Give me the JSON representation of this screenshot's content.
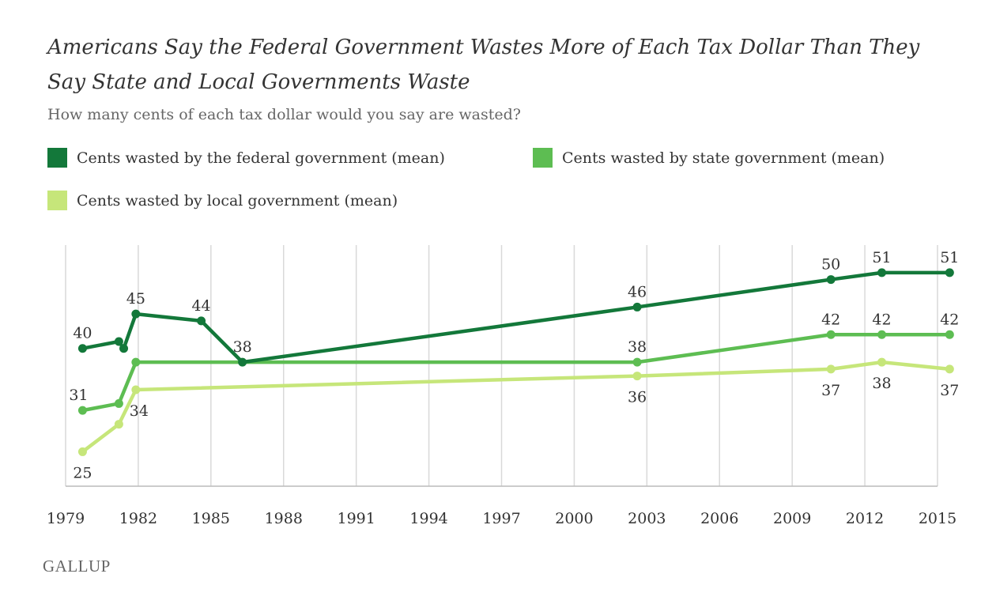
{
  "title": "Americans Say the Federal Government Wastes More of Each Tax Dollar Than They Say State and Local Governments Waste",
  "subtitle": "How many cents of each tax dollar would you say are wasted?",
  "brand": "GALLUP",
  "chart_data": {
    "type": "line",
    "x_ticks": [
      "1979",
      "1982",
      "1985",
      "1988",
      "1991",
      "1994",
      "1997",
      "2000",
      "2003",
      "2006",
      "2009",
      "2012",
      "2015"
    ],
    "xlim": [
      1979,
      2015
    ],
    "ylim": [
      20,
      55
    ],
    "grid": "vertical",
    "legend_position": "top",
    "series": [
      {
        "name": "Cents wasted by the federal government (mean)",
        "color": "#13783a",
        "x": [
          1979.7,
          1981.2,
          1981.4,
          1981.9,
          1984.6,
          1986.3,
          2002.6,
          2010.6,
          2012.7,
          2015.5
        ],
        "values": [
          40,
          41,
          40,
          45,
          44,
          38,
          46,
          50,
          51,
          51
        ],
        "labels": [
          {
            "i": 0,
            "text": "40",
            "pos": "above"
          },
          {
            "i": 3,
            "text": "45",
            "pos": "above"
          },
          {
            "i": 4,
            "text": "44",
            "pos": "above"
          },
          {
            "i": 5,
            "text": "38",
            "pos": "above"
          },
          {
            "i": 6,
            "text": "46",
            "pos": "above"
          },
          {
            "i": 7,
            "text": "50",
            "pos": "above"
          },
          {
            "i": 8,
            "text": "51",
            "pos": "above"
          },
          {
            "i": 9,
            "text": "51",
            "pos": "above"
          }
        ]
      },
      {
        "name": "Cents wasted by state government (mean)",
        "color": "#5dbd52",
        "x": [
          1979.7,
          1981.2,
          1981.9,
          2002.6,
          2010.6,
          2012.7,
          2015.5
        ],
        "values": [
          31,
          32,
          38,
          38,
          42,
          42,
          42
        ],
        "labels": [
          {
            "i": 0,
            "text": "31",
            "pos": "above"
          },
          {
            "i": 3,
            "text": "38",
            "pos": "above"
          },
          {
            "i": 4,
            "text": "42",
            "pos": "above"
          },
          {
            "i": 5,
            "text": "42",
            "pos": "above"
          },
          {
            "i": 6,
            "text": "42",
            "pos": "above"
          }
        ]
      },
      {
        "name": "Cents wasted by local government (mean)",
        "color": "#c6e67a",
        "x": [
          1979.7,
          1981.2,
          1981.9,
          2002.6,
          2010.6,
          2012.7,
          2015.5
        ],
        "values": [
          25,
          29,
          34,
          36,
          37,
          38,
          37
        ],
        "labels": [
          {
            "i": 0,
            "text": "25",
            "pos": "below"
          },
          {
            "i": 2,
            "text": "34",
            "pos": "below"
          },
          {
            "i": 3,
            "text": "36",
            "pos": "below"
          },
          {
            "i": 4,
            "text": "37",
            "pos": "below"
          },
          {
            "i": 5,
            "text": "38",
            "pos": "below"
          },
          {
            "i": 6,
            "text": "37",
            "pos": "below"
          }
        ]
      }
    ]
  }
}
